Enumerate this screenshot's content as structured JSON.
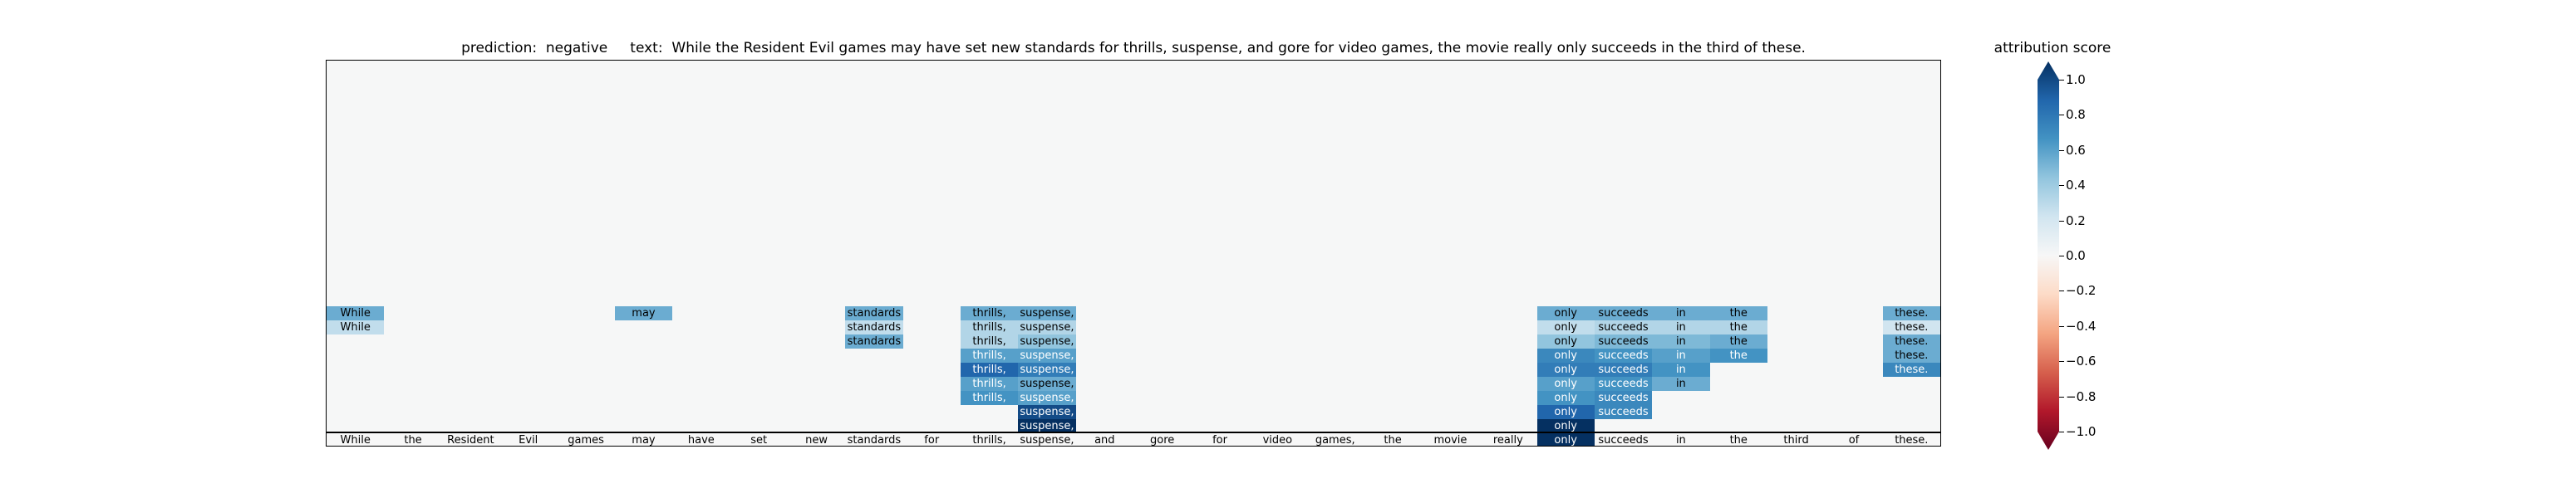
{
  "header": {
    "prediction_label": "prediction:",
    "prediction_value": "negative",
    "text_label": "text:",
    "text_value": "While the Resident Evil games may have set new standards for thrills, suspense, and gore for video games, the movie really only succeeds in the third of these."
  },
  "legend": {
    "title": "attribution score",
    "ticks": [
      "1.0",
      "0.8",
      "0.6",
      "0.4",
      "0.2",
      "0.0",
      "−0.2",
      "−0.4",
      "−0.6",
      "−0.8",
      "−1.0"
    ],
    "tick_values": [
      1.0,
      0.8,
      0.6,
      0.4,
      0.2,
      0.0,
      -0.2,
      -0.4,
      -0.6,
      -0.8,
      -1.0
    ],
    "colormap": "RdBu",
    "range": [
      -1,
      1
    ]
  },
  "chart_data": {
    "type": "heatmap",
    "title": "",
    "tokens": [
      "While",
      "the",
      "Resident",
      "Evil",
      "games",
      "may",
      "have",
      "set",
      "new",
      "standards",
      "for",
      "thrills,",
      "suspense,",
      "and",
      "gore",
      "for",
      "video",
      "games,",
      "the",
      "movie",
      "really",
      "only",
      "succeeds",
      "in",
      "the",
      "third",
      "of",
      "these."
    ],
    "bottom_row_scores": [
      0.0,
      0.0,
      0.0,
      0.0,
      0.0,
      0.0,
      0.0,
      0.0,
      0.0,
      0.0,
      0.0,
      0.0,
      0.0,
      0.0,
      0.0,
      0.0,
      0.0,
      0.0,
      0.0,
      0.0,
      0.0,
      1.0,
      0.0,
      0.0,
      0.0,
      0.0,
      0.0,
      0.0
    ],
    "rows": [
      {
        "level": 1,
        "cells": [
          [
            12,
            1.0
          ],
          [
            21,
            1.0
          ]
        ]
      },
      {
        "level": 2,
        "cells": [
          [
            12,
            0.9
          ],
          [
            21,
            0.8
          ],
          [
            22,
            0.65
          ]
        ]
      },
      {
        "level": 3,
        "cells": [
          [
            11,
            0.6
          ],
          [
            12,
            0.55
          ],
          [
            21,
            0.6
          ],
          [
            22,
            0.65
          ]
        ]
      },
      {
        "level": 4,
        "cells": [
          [
            11,
            0.55
          ],
          [
            12,
            0.5
          ],
          [
            21,
            0.55
          ],
          [
            22,
            0.6
          ],
          [
            23,
            0.5
          ]
        ]
      },
      {
        "level": 5,
        "cells": [
          [
            11,
            0.8
          ],
          [
            12,
            0.7
          ],
          [
            21,
            0.7
          ],
          [
            22,
            0.7
          ],
          [
            23,
            0.6
          ],
          [
            27,
            0.65
          ]
        ]
      },
      {
        "level": 6,
        "cells": [
          [
            11,
            0.55
          ],
          [
            12,
            0.55
          ],
          [
            21,
            0.65
          ],
          [
            22,
            0.6
          ],
          [
            23,
            0.55
          ],
          [
            24,
            0.6
          ],
          [
            27,
            0.5
          ]
        ]
      },
      {
        "level": 7,
        "cells": [
          [
            9,
            0.5
          ],
          [
            11,
            0.3
          ],
          [
            12,
            0.4
          ],
          [
            21,
            0.4
          ],
          [
            22,
            0.45
          ],
          [
            23,
            0.45
          ],
          [
            24,
            0.5
          ],
          [
            27,
            0.5
          ]
        ]
      },
      {
        "level": 8,
        "cells": [
          [
            0,
            0.25
          ],
          [
            9,
            0.25
          ],
          [
            11,
            0.3
          ],
          [
            12,
            0.3
          ],
          [
            21,
            0.25
          ],
          [
            22,
            0.3
          ],
          [
            23,
            0.3
          ],
          [
            24,
            0.3
          ],
          [
            27,
            0.2
          ]
        ]
      },
      {
        "level": 9,
        "cells": [
          [
            0,
            0.5
          ],
          [
            5,
            0.5
          ],
          [
            9,
            0.5
          ],
          [
            11,
            0.5
          ],
          [
            12,
            0.5
          ],
          [
            21,
            0.5
          ],
          [
            22,
            0.5
          ],
          [
            23,
            0.5
          ],
          [
            24,
            0.5
          ],
          [
            27,
            0.5
          ]
        ]
      }
    ]
  }
}
